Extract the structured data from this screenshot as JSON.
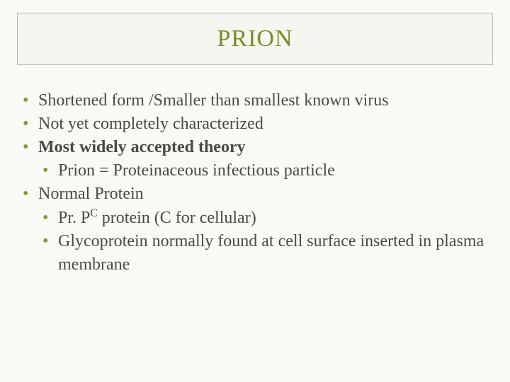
{
  "slide": {
    "title": "PRION",
    "title_color": "#7d8a26",
    "title_fontsize": 34,
    "title_box": {
      "background_color": "#f6f5f0",
      "border_color": "#b9b8b1"
    },
    "body_fontsize": 24,
    "body_color": "#4a4a45",
    "bullet_color": "#8a9431",
    "background_color": "#faf9f5",
    "bullets": [
      {
        "text": "Shortened form /Smaller than smallest known virus",
        "bold": false
      },
      {
        "text": "Not yet completely characterized",
        "bold": false
      },
      {
        "text": "Most widely accepted theory",
        "bold": true,
        "children": [
          {
            "text": "Prion = Proteinaceous infectious particle"
          }
        ]
      },
      {
        "text": "Normal Protein",
        "bold": false,
        "children": [
          {
            "text_pre": "Pr. P",
            "sup": "C",
            "text_post": "  protein (C for cellular)"
          },
          {
            "text": "Glycoprotein normally found at cell surface inserted in plasma membrane"
          }
        ]
      }
    ]
  }
}
